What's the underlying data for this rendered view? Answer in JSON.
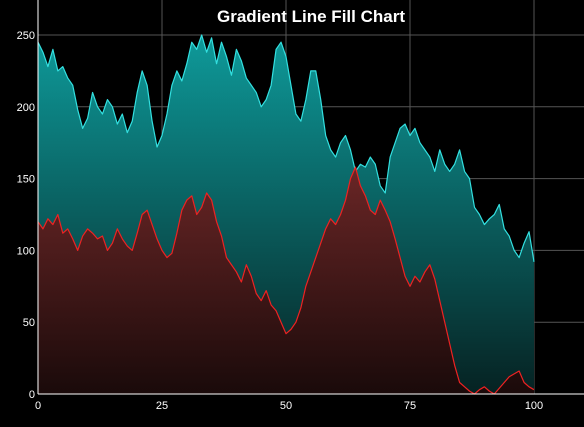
{
  "chart_data": {
    "type": "area",
    "title": "Gradient Line Fill Chart",
    "xlabel": "",
    "ylabel": "",
    "xlim": [
      0,
      100
    ],
    "ylim": [
      0,
      250
    ],
    "x_ticks": [
      0,
      25,
      50,
      75,
      100
    ],
    "y_ticks": [
      0,
      50,
      100,
      150,
      200,
      250
    ],
    "grid": true,
    "colors": {
      "background": "#000000",
      "grid": "#555555",
      "upper_line": "#33e0e0",
      "upper_fill_top": "#0e9a9a",
      "upper_fill_bottom": "#062222",
      "lower_line": "#ee2222",
      "lower_fill_top": "#6a2626",
      "lower_fill_bottom": "#1a0a0a"
    },
    "x": [
      0,
      1,
      2,
      3,
      4,
      5,
      6,
      7,
      8,
      9,
      10,
      11,
      12,
      13,
      14,
      15,
      16,
      17,
      18,
      19,
      20,
      21,
      22,
      23,
      24,
      25,
      26,
      27,
      28,
      29,
      30,
      31,
      32,
      33,
      34,
      35,
      36,
      37,
      38,
      39,
      40,
      41,
      42,
      43,
      44,
      45,
      46,
      47,
      48,
      49,
      50,
      51,
      52,
      53,
      54,
      55,
      56,
      57,
      58,
      59,
      60,
      61,
      62,
      63,
      64,
      65,
      66,
      67,
      68,
      69,
      70,
      71,
      72,
      73,
      74,
      75,
      76,
      77,
      78,
      79,
      80,
      81,
      82,
      83,
      84,
      85,
      86,
      87,
      88,
      89,
      90,
      91,
      92,
      93,
      94,
      95,
      96,
      97,
      98,
      99,
      100
    ],
    "series": [
      {
        "values": [
          245,
          238,
          228,
          240,
          225,
          228,
          220,
          215,
          198,
          185,
          192,
          210,
          200,
          195,
          205,
          200,
          188,
          195,
          182,
          190,
          210,
          225,
          215,
          190,
          172,
          180,
          195,
          215,
          225,
          218,
          230,
          245,
          240,
          250,
          238,
          248,
          230,
          245,
          235,
          222,
          240,
          232,
          220,
          215,
          210,
          200,
          205,
          215,
          240,
          245,
          235,
          215,
          195,
          190,
          205,
          225,
          225,
          205,
          180,
          170,
          165,
          175,
          180,
          170,
          155,
          160,
          158,
          165,
          160,
          145,
          140,
          165,
          175,
          185,
          188,
          180,
          185,
          175,
          170,
          165,
          155,
          170,
          160,
          155,
          160,
          170,
          155,
          150,
          130,
          125,
          118,
          122,
          125,
          132,
          115,
          110,
          100,
          95,
          105,
          113,
          92
        ],
        "style": "teal"
      },
      {
        "values": [
          120,
          115,
          122,
          118,
          125,
          112,
          115,
          108,
          100,
          110,
          115,
          112,
          108,
          110,
          100,
          105,
          115,
          108,
          103,
          100,
          112,
          125,
          128,
          118,
          108,
          100,
          95,
          98,
          112,
          128,
          135,
          138,
          125,
          130,
          140,
          135,
          120,
          110,
          95,
          90,
          85,
          78,
          90,
          82,
          70,
          65,
          72,
          62,
          58,
          50,
          42,
          45,
          50,
          60,
          75,
          85,
          95,
          105,
          115,
          122,
          118,
          125,
          135,
          150,
          158,
          145,
          138,
          128,
          125,
          135,
          128,
          120,
          108,
          95,
          82,
          75,
          82,
          78,
          85,
          90,
          80,
          65,
          50,
          35,
          20,
          8,
          5,
          2,
          0,
          3,
          5,
          2,
          0,
          4,
          8,
          12,
          14,
          16,
          8,
          5,
          3
        ],
        "style": "red"
      }
    ]
  }
}
